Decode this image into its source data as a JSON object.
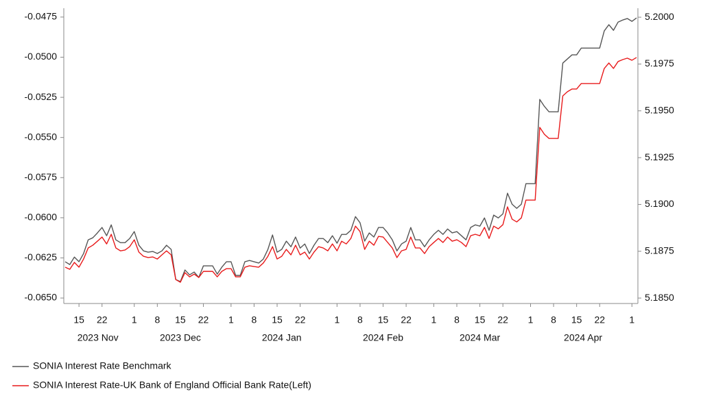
{
  "chart_data": {
    "type": "line",
    "x": [
      "2023-11-10",
      "2023-11-13",
      "2023-11-14",
      "2023-11-15",
      "2023-11-16",
      "2023-11-17",
      "2023-11-20",
      "2023-11-21",
      "2023-11-22",
      "2023-11-23",
      "2023-11-24",
      "2023-11-27",
      "2023-11-28",
      "2023-11-29",
      "2023-11-30",
      "2023-12-01",
      "2023-12-04",
      "2023-12-05",
      "2023-12-06",
      "2023-12-07",
      "2023-12-08",
      "2023-12-11",
      "2023-12-12",
      "2023-12-13",
      "2023-12-14",
      "2023-12-15",
      "2023-12-18",
      "2023-12-19",
      "2023-12-20",
      "2023-12-21",
      "2023-12-22",
      "2023-12-25",
      "2023-12-26",
      "2023-12-27",
      "2023-12-28",
      "2023-12-29",
      "2024-01-01",
      "2024-01-02",
      "2024-01-03",
      "2024-01-04",
      "2024-01-05",
      "2024-01-08",
      "2024-01-09",
      "2024-01-10",
      "2024-01-11",
      "2024-01-12",
      "2024-01-15",
      "2024-01-16",
      "2024-01-17",
      "2024-01-18",
      "2024-01-19",
      "2024-01-22",
      "2024-01-23",
      "2024-01-24",
      "2024-01-25",
      "2024-01-26",
      "2024-01-29",
      "2024-01-30",
      "2024-01-31",
      "2024-02-01",
      "2024-02-02",
      "2024-02-05",
      "2024-02-06",
      "2024-02-07",
      "2024-02-08",
      "2024-02-09",
      "2024-02-12",
      "2024-02-13",
      "2024-02-14",
      "2024-02-15",
      "2024-02-16",
      "2024-02-19",
      "2024-02-20",
      "2024-02-21",
      "2024-02-22",
      "2024-02-23",
      "2024-02-26",
      "2024-02-27",
      "2024-02-28",
      "2024-02-29",
      "2024-03-01",
      "2024-03-04",
      "2024-03-05",
      "2024-03-06",
      "2024-03-07",
      "2024-03-08",
      "2024-03-11",
      "2024-03-12",
      "2024-03-13",
      "2024-03-14",
      "2024-03-15",
      "2024-03-18",
      "2024-03-19",
      "2024-03-20",
      "2024-03-21",
      "2024-03-22",
      "2024-03-25",
      "2024-03-26",
      "2024-03-27",
      "2024-03-28",
      "2024-03-29",
      "2024-04-01",
      "2024-04-02",
      "2024-04-03",
      "2024-04-04",
      "2024-04-05",
      "2024-04-08",
      "2024-04-09",
      "2024-04-10",
      "2024-04-11",
      "2024-04-12",
      "2024-04-15",
      "2024-04-16",
      "2024-04-17",
      "2024-04-18",
      "2024-04-19",
      "2024-04-22",
      "2024-04-23",
      "2024-04-24",
      "2024-04-25",
      "2024-04-26",
      "2024-04-29",
      "2024-04-30",
      "2024-05-01",
      "2024-05-02"
    ],
    "series": [
      {
        "name": "SONIA Interest Rate Benchmark",
        "color": "#555555",
        "axis": "y2",
        "values": [
          5.18694,
          5.18679,
          5.18719,
          5.18694,
          5.18738,
          5.18811,
          5.18822,
          5.18848,
          5.18877,
          5.18833,
          5.18891,
          5.18811,
          5.18796,
          5.18796,
          5.18818,
          5.18855,
          5.18782,
          5.18752,
          5.18745,
          5.18749,
          5.18738,
          5.18752,
          5.18782,
          5.1876,
          5.18599,
          5.18588,
          5.1865,
          5.18624,
          5.18639,
          5.1861,
          5.18672,
          5.18672,
          5.18672,
          5.18628,
          5.18665,
          5.18694,
          5.18694,
          5.18621,
          5.18621,
          5.18694,
          5.18701,
          5.18694,
          5.18687,
          5.18708,
          5.1876,
          5.18837,
          5.18745,
          5.1876,
          5.18804,
          5.18774,
          5.18826,
          5.18767,
          5.18789,
          5.18738,
          5.18782,
          5.18818,
          5.18818,
          5.18796,
          5.18833,
          5.18793,
          5.1884,
          5.1884,
          5.18862,
          5.18935,
          5.18902,
          5.18804,
          5.18848,
          5.18826,
          5.18877,
          5.18877,
          5.18848,
          5.18811,
          5.18752,
          5.18789,
          5.18804,
          5.18877,
          5.18811,
          5.18811,
          5.18774,
          5.18811,
          5.1884,
          5.18862,
          5.1884,
          5.18869,
          5.18848,
          5.18855,
          5.18833,
          5.18811,
          5.18877,
          5.18891,
          5.18884,
          5.18928,
          5.18862,
          5.18943,
          5.18928,
          5.1895,
          5.1906,
          5.19001,
          5.18979,
          5.19001,
          5.19111,
          5.19111,
          5.19111,
          5.19561,
          5.19524,
          5.19495,
          5.19495,
          5.19495,
          5.19755,
          5.19777,
          5.19799,
          5.19799,
          5.19835,
          5.19835,
          5.19835,
          5.19835,
          5.19835,
          5.19927,
          5.1996,
          5.1993,
          5.19974,
          5.19985,
          5.19993,
          5.19978,
          5.19996
        ]
      },
      {
        "name": "SONIA Interest Rate-UK Bank of England Official Bank Rate(Left)",
        "color": "#e8191a",
        "values": [
          -0.06308,
          -0.06321,
          -0.06278,
          -0.06308,
          -0.06257,
          -0.06188,
          -0.06171,
          -0.06146,
          -0.0612,
          -0.06163,
          -0.06103,
          -0.06188,
          -0.06206,
          -0.06201,
          -0.0618,
          -0.06137,
          -0.06214,
          -0.0624,
          -0.06248,
          -0.06244,
          -0.06257,
          -0.06231,
          -0.06206,
          -0.06231,
          -0.06385,
          -0.06402,
          -0.06342,
          -0.06368,
          -0.06351,
          -0.06372,
          -0.06334,
          -0.06334,
          -0.06334,
          -0.06368,
          -0.06334,
          -0.06317,
          -0.06317,
          -0.06368,
          -0.06368,
          -0.06308,
          -0.06299,
          -0.06304,
          -0.06308,
          -0.06282,
          -0.0624,
          -0.0618,
          -0.06257,
          -0.0624,
          -0.06197,
          -0.06231,
          -0.06171,
          -0.06231,
          -0.06214,
          -0.06257,
          -0.06214,
          -0.0618,
          -0.06188,
          -0.06206,
          -0.06163,
          -0.06206,
          -0.06146,
          -0.06163,
          -0.06129,
          -0.06052,
          -0.06086,
          -0.06197,
          -0.06146,
          -0.06171,
          -0.06116,
          -0.0612,
          -0.06154,
          -0.06188,
          -0.06248,
          -0.06206,
          -0.06197,
          -0.0612,
          -0.06188,
          -0.06188,
          -0.06223,
          -0.0618,
          -0.06154,
          -0.06129,
          -0.06154,
          -0.0612,
          -0.06146,
          -0.06137,
          -0.06154,
          -0.0618,
          -0.06112,
          -0.06103,
          -0.06112,
          -0.0606,
          -0.06129,
          -0.06052,
          -0.06069,
          -0.06043,
          -0.05932,
          -0.06009,
          -0.06026,
          -0.06001,
          -0.0589,
          -0.0589,
          -0.0589,
          -0.05437,
          -0.0548,
          -0.05506,
          -0.05506,
          -0.05506,
          -0.05241,
          -0.05215,
          -0.05198,
          -0.05198,
          -0.05164,
          -0.05164,
          -0.05164,
          -0.05164,
          -0.05164,
          -0.0507,
          -0.05036,
          -0.0507,
          -0.05027,
          -0.05015,
          -0.05006,
          -0.05019,
          -0.05002
        ]
      }
    ],
    "ylim": [
      -0.06534,
      -0.04695
    ],
    "yticks": [
      -0.0475,
      {
        "value": -0.05,
        "label": "-0.0500"
      },
      -0.0525,
      {
        "value": -0.055,
        "label": "-0.0550"
      },
      -0.0575,
      {
        "value": -0.06,
        "label": "-0.0600"
      },
      -0.0625,
      {
        "value": -0.065,
        "label": "-0.0650"
      }
    ],
    "y2lim": [
      5.18471,
      5.20048
    ],
    "y2ticks": [
      {
        "value": 5.2,
        "label": "5.2000"
      },
      {
        "value": 5.1975,
        "label": "5.1975"
      },
      {
        "value": 5.195,
        "label": "5.1950"
      },
      {
        "value": 5.1925,
        "label": "5.1925"
      },
      {
        "value": 5.19,
        "label": "5.1900"
      },
      {
        "value": 5.1875,
        "label": "5.1875"
      },
      {
        "value": 5.185,
        "label": "5.1850"
      }
    ],
    "xticks": [
      {
        "value": "2023-11-15",
        "label": "15"
      },
      {
        "value": "2023-11-22",
        "label": "22"
      },
      {
        "value": "2023-12-01",
        "label": "1"
      },
      {
        "value": "2023-12-08",
        "label": "8"
      },
      {
        "value": "2023-12-15",
        "label": "15"
      },
      {
        "value": "2023-12-22",
        "label": "22"
      },
      {
        "value": "2024-01-01",
        "label": "1"
      },
      {
        "value": "2024-01-08",
        "label": "8"
      },
      {
        "value": "2024-01-15",
        "label": "15"
      },
      {
        "value": "2024-01-22",
        "label": "22"
      },
      {
        "value": "2024-02-01",
        "label": "1"
      },
      {
        "value": "2024-02-08",
        "label": "8"
      },
      {
        "value": "2024-02-15",
        "label": "15"
      },
      {
        "value": "2024-02-22",
        "label": "22"
      },
      {
        "value": "2024-03-01",
        "label": "1"
      },
      {
        "value": "2024-03-08",
        "label": "8"
      },
      {
        "value": "2024-03-15",
        "label": "15"
      },
      {
        "value": "2024-03-22",
        "label": "22"
      },
      {
        "value": "2024-04-01",
        "label": "1"
      },
      {
        "value": "2024-04-08",
        "label": "8"
      },
      {
        "value": "2024-04-15",
        "label": "15"
      },
      {
        "value": "2024-04-22",
        "label": "22"
      },
      {
        "value": "2024-05-01",
        "label": "1"
      }
    ],
    "x_groups": [
      {
        "value": "2023-11",
        "label": "2023 Nov"
      },
      {
        "value": "2023-12",
        "label": "2023 Dec"
      },
      {
        "value": "2024-01",
        "label": "2024 Jan"
      },
      {
        "value": "2024-02",
        "label": "2024 Feb"
      },
      {
        "value": "2024-03",
        "label": "2024 Mar"
      },
      {
        "value": "2024-04",
        "label": "2024 Apr"
      }
    ],
    "grid": false,
    "legend": "bottom"
  }
}
